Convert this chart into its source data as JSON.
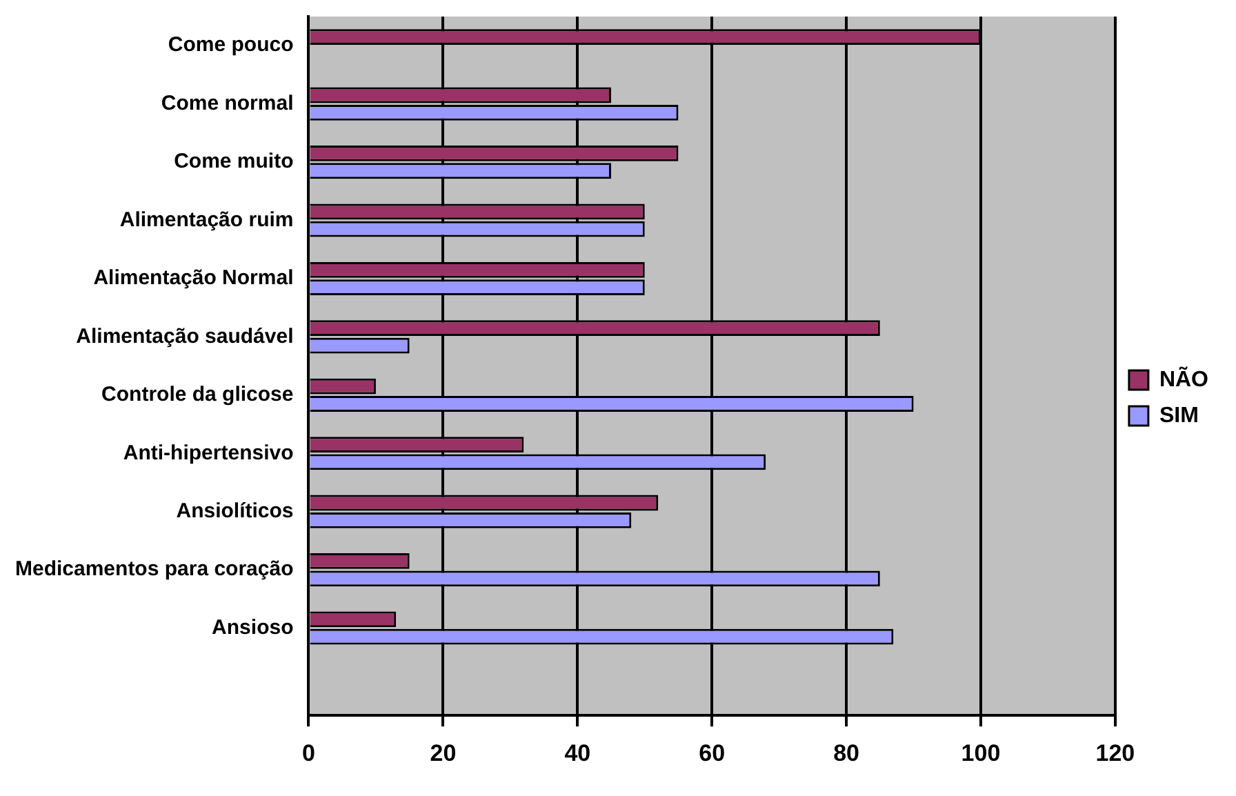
{
  "chart_data": {
    "type": "bar",
    "orientation": "horizontal",
    "categories": [
      "Come pouco",
      "Come normal",
      "Come muito",
      "Alimentação ruim",
      "Alimentação Normal",
      "Alimentação saudável",
      "Controle da glicose",
      "Anti-hipertensivo",
      "Ansiolíticos",
      "Medicamentos para coração",
      "Ansioso",
      null
    ],
    "series": [
      {
        "name": "NÃO",
        "color": "#993366",
        "values": [
          100,
          45,
          55,
          50,
          50,
          85,
          10,
          32,
          52,
          15,
          13,
          null
        ]
      },
      {
        "name": "SIM",
        "color": "#9999ff",
        "values": [
          null,
          55,
          45,
          50,
          50,
          15,
          90,
          68,
          48,
          85,
          87,
          null
        ]
      }
    ],
    "xlim": [
      0,
      120
    ],
    "xticks": [
      0,
      20,
      40,
      60,
      80,
      100,
      120
    ],
    "grid": "x",
    "legend": "right"
  }
}
